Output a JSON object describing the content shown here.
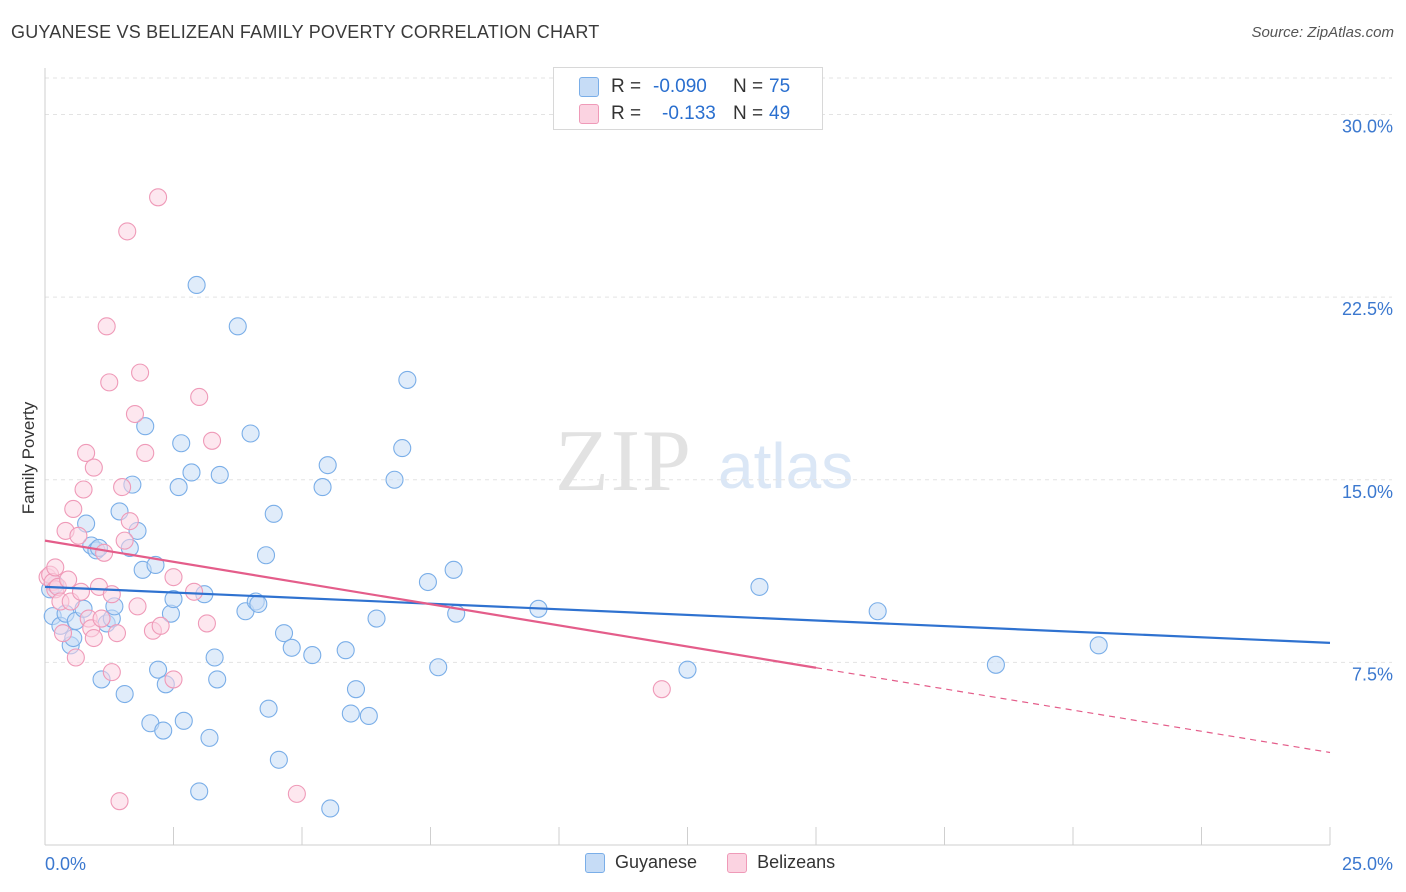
{
  "title": "GUYANESE VS BELIZEAN FAMILY POVERTY CORRELATION CHART",
  "source": "Source: ZipAtlas.com",
  "watermark": {
    "zip": "ZIP",
    "atlas": "atlas"
  },
  "stats_box": {
    "rows": [
      {
        "r_label": "R =",
        "r_value": "-0.090",
        "n_label": "N =",
        "n_value": "75",
        "color": "#7aaee8",
        "fill": "#c6dcf6"
      },
      {
        "r_label": "R =",
        "r_value": "-0.133",
        "n_label": "N =",
        "n_value": "49",
        "color": "#ef9ab8",
        "fill": "#fbd3e1"
      }
    ]
  },
  "legend": [
    {
      "label": "Guyanese",
      "color": "#7aaee8",
      "fill": "#c6dcf6"
    },
    {
      "label": "Belizeans",
      "color": "#ef9ab8",
      "fill": "#fbd3e1"
    }
  ],
  "chart_data": {
    "type": "scatter",
    "title": "GUYANESE VS BELIZEAN FAMILY POVERTY CORRELATION CHART",
    "xlabel": "",
    "ylabel": "Family Poverty",
    "xlim": [
      0,
      25
    ],
    "ylim": [
      0,
      31.5
    ],
    "x_tick_labels": [
      "0.0%",
      "25.0%"
    ],
    "y_ticks": [
      7.5,
      15.0,
      22.5,
      30.0
    ],
    "y_tick_labels": [
      "7.5%",
      "15.0%",
      "22.5%",
      "30.0%"
    ],
    "grid": true,
    "legend_position": "bottom-center",
    "series": [
      {
        "name": "Guyanese",
        "color": "#2f72d0",
        "marker_fill": "#c6dcf6",
        "marker_edge": "#7aaee8",
        "trend": {
          "x": [
            0,
            25
          ],
          "y": [
            10.6,
            8.3
          ],
          "dashed_from": null
        },
        "points": [
          [
            0.1,
            10.5
          ],
          [
            0.2,
            10.7
          ],
          [
            0.15,
            9.4
          ],
          [
            0.3,
            9.0
          ],
          [
            0.4,
            9.5
          ],
          [
            0.5,
            8.2
          ],
          [
            0.55,
            8.5
          ],
          [
            0.6,
            9.2
          ],
          [
            0.75,
            9.7
          ],
          [
            0.8,
            13.2
          ],
          [
            0.9,
            12.3
          ],
          [
            1.0,
            12.1
          ],
          [
            1.05,
            12.2
          ],
          [
            1.1,
            6.8
          ],
          [
            1.2,
            9.1
          ],
          [
            1.3,
            9.3
          ],
          [
            1.35,
            9.8
          ],
          [
            1.45,
            13.7
          ],
          [
            1.55,
            6.2
          ],
          [
            1.65,
            12.2
          ],
          [
            1.7,
            14.8
          ],
          [
            1.8,
            12.9
          ],
          [
            1.9,
            11.3
          ],
          [
            1.95,
            17.2
          ],
          [
            2.05,
            5.0
          ],
          [
            2.15,
            11.5
          ],
          [
            2.2,
            7.2
          ],
          [
            2.3,
            4.7
          ],
          [
            2.35,
            6.6
          ],
          [
            2.45,
            9.5
          ],
          [
            2.5,
            10.1
          ],
          [
            2.6,
            14.7
          ],
          [
            2.65,
            16.5
          ],
          [
            2.7,
            5.1
          ],
          [
            2.85,
            15.3
          ],
          [
            2.95,
            23.0
          ],
          [
            3.0,
            2.2
          ],
          [
            3.1,
            10.3
          ],
          [
            3.2,
            4.4
          ],
          [
            3.3,
            7.7
          ],
          [
            3.35,
            6.8
          ],
          [
            3.4,
            15.2
          ],
          [
            3.75,
            21.3
          ],
          [
            3.9,
            9.6
          ],
          [
            4.0,
            16.9
          ],
          [
            4.1,
            10.0
          ],
          [
            4.15,
            9.9
          ],
          [
            4.3,
            11.9
          ],
          [
            4.35,
            5.6
          ],
          [
            4.45,
            13.6
          ],
          [
            4.55,
            3.5
          ],
          [
            4.65,
            8.7
          ],
          [
            4.8,
            8.1
          ],
          [
            5.2,
            7.8
          ],
          [
            5.4,
            14.7
          ],
          [
            5.5,
            15.6
          ],
          [
            5.55,
            1.5
          ],
          [
            5.85,
            8.0
          ],
          [
            5.95,
            5.4
          ],
          [
            6.05,
            6.4
          ],
          [
            6.3,
            5.3
          ],
          [
            6.45,
            9.3
          ],
          [
            6.8,
            15.0
          ],
          [
            6.95,
            16.3
          ],
          [
            7.05,
            19.1
          ],
          [
            7.45,
            10.8
          ],
          [
            7.65,
            7.3
          ],
          [
            7.95,
            11.3
          ],
          [
            8.0,
            9.5
          ],
          [
            9.6,
            9.7
          ],
          [
            12.5,
            7.2
          ],
          [
            13.9,
            10.6
          ],
          [
            16.2,
            9.6
          ],
          [
            18.5,
            7.4
          ],
          [
            20.5,
            8.2
          ]
        ]
      },
      {
        "name": "Belizeans",
        "color": "#e45d8a",
        "marker_fill": "#fbd3e1",
        "marker_edge": "#ef9ab8",
        "trend": {
          "x": [
            0,
            25
          ],
          "y": [
            12.5,
            3.8
          ],
          "dashed_from": 15.0
        },
        "points": [
          [
            0.05,
            11.0
          ],
          [
            0.1,
            11.1
          ],
          [
            0.15,
            10.8
          ],
          [
            0.2,
            11.4
          ],
          [
            0.2,
            10.5
          ],
          [
            0.25,
            10.6
          ],
          [
            0.3,
            10.0
          ],
          [
            0.35,
            8.7
          ],
          [
            0.4,
            12.9
          ],
          [
            0.45,
            10.9
          ],
          [
            0.5,
            10.0
          ],
          [
            0.55,
            13.8
          ],
          [
            0.6,
            7.7
          ],
          [
            0.65,
            12.7
          ],
          [
            0.7,
            10.4
          ],
          [
            0.75,
            14.6
          ],
          [
            0.8,
            16.1
          ],
          [
            0.85,
            9.3
          ],
          [
            0.9,
            8.9
          ],
          [
            0.95,
            15.5
          ],
          [
            0.95,
            8.5
          ],
          [
            1.05,
            10.6
          ],
          [
            1.1,
            9.3
          ],
          [
            1.15,
            12.0
          ],
          [
            1.2,
            21.3
          ],
          [
            1.25,
            19.0
          ],
          [
            1.3,
            10.3
          ],
          [
            1.3,
            7.1
          ],
          [
            1.4,
            8.7
          ],
          [
            1.45,
            1.8
          ],
          [
            1.5,
            14.7
          ],
          [
            1.55,
            12.5
          ],
          [
            1.6,
            25.2
          ],
          [
            1.65,
            13.3
          ],
          [
            1.75,
            17.7
          ],
          [
            1.8,
            9.8
          ],
          [
            1.85,
            19.4
          ],
          [
            1.95,
            16.1
          ],
          [
            2.1,
            8.8
          ],
          [
            2.2,
            26.6
          ],
          [
            2.25,
            9.0
          ],
          [
            2.5,
            11.0
          ],
          [
            2.5,
            6.8
          ],
          [
            2.9,
            10.4
          ],
          [
            3.0,
            18.4
          ],
          [
            3.15,
            9.1
          ],
          [
            3.25,
            16.6
          ],
          [
            4.9,
            2.1
          ],
          [
            12.0,
            6.4
          ]
        ]
      }
    ]
  }
}
